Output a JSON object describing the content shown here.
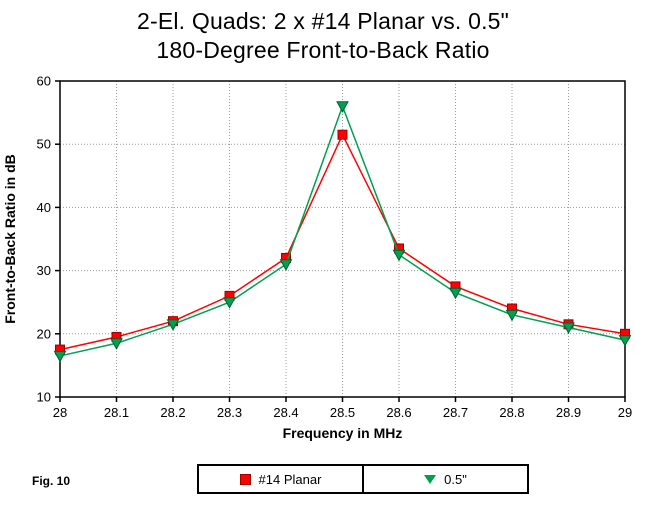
{
  "title_line1": "2-El. Quads:  2 x #14 Planar vs. 0.5\"",
  "title_line2": "180-Degree Front-to-Back Ratio",
  "fig_label": "Fig. 10",
  "chart_data": {
    "type": "line",
    "title": "2-El. Quads: 2 x #14 Planar vs. 0.5\" — 180-Degree Front-to-Back Ratio",
    "xlabel": "Frequency in MHz",
    "ylabel": "Front-to-Back Ratio in dB",
    "xlim": [
      28,
      29
    ],
    "ylim": [
      10,
      60
    ],
    "xticks": [
      28,
      28.1,
      28.2,
      28.3,
      28.4,
      28.5,
      28.6,
      28.7,
      28.8,
      28.9,
      29
    ],
    "yticks": [
      10,
      20,
      30,
      40,
      50,
      60
    ],
    "grid": true,
    "grid_color": "#9a9a9a",
    "legend_position": "bottom",
    "x": [
      28,
      28.1,
      28.2,
      28.3,
      28.4,
      28.5,
      28.6,
      28.7,
      28.8,
      28.9,
      29
    ],
    "series": [
      {
        "name": "#14 Planar",
        "color": "#ff0000",
        "edge": "#a00000",
        "marker": "square",
        "values": [
          17.5,
          19.5,
          22,
          26,
          32,
          51.5,
          33.5,
          27.5,
          24,
          21.5,
          20
        ]
      },
      {
        "name": "0.5\"",
        "color": "#00a050",
        "edge": "#006030",
        "marker": "triangle-down",
        "values": [
          16.5,
          18.5,
          21.5,
          25,
          31,
          56,
          32.5,
          26.5,
          23,
          21,
          19
        ]
      }
    ]
  }
}
